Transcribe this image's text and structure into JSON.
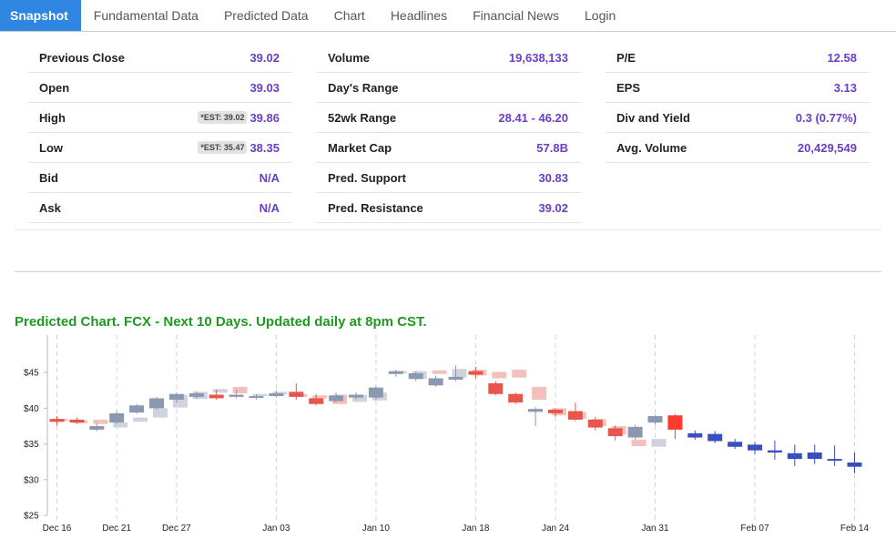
{
  "tabs": [
    {
      "label": "Snapshot",
      "active": true
    },
    {
      "label": "Fundamental Data",
      "active": false
    },
    {
      "label": "Predicted Data",
      "active": false
    },
    {
      "label": "Chart",
      "active": false
    },
    {
      "label": "Headlines",
      "active": false
    },
    {
      "label": "Financial News",
      "active": false
    },
    {
      "label": "Login",
      "active": false
    }
  ],
  "stats": {
    "col1": [
      {
        "label": "Previous Close",
        "value": "39.02",
        "est": ""
      },
      {
        "label": "Open",
        "value": "39.03",
        "est": ""
      },
      {
        "label": "High",
        "value": "39.86",
        "est": "*EST: 39.02"
      },
      {
        "label": "Low",
        "value": "38.35",
        "est": "*EST: 35.47"
      },
      {
        "label": "Bid",
        "value": "N/A",
        "est": ""
      },
      {
        "label": "Ask",
        "value": "N/A",
        "est": ""
      }
    ],
    "col2": [
      {
        "label": "Volume",
        "value": "19,638,133",
        "est": ""
      },
      {
        "label": "Day's Range",
        "value": "",
        "est": ""
      },
      {
        "label": "52wk Range",
        "value": "28.41 - 46.20",
        "est": ""
      },
      {
        "label": "Market Cap",
        "value": "57.8B",
        "est": ""
      },
      {
        "label": "Pred. Support",
        "value": "30.83",
        "est": ""
      },
      {
        "label": "Pred. Resistance",
        "value": "39.02",
        "est": ""
      }
    ],
    "col3": [
      {
        "label": "P/E",
        "value": "12.58",
        "est": ""
      },
      {
        "label": "EPS",
        "value": "3.13",
        "est": ""
      },
      {
        "label": "Div and Yield",
        "value": "0.3 (0.77%)",
        "est": ""
      },
      {
        "label": "Avg. Volume",
        "value": "20,429,549",
        "est": ""
      }
    ]
  },
  "chart_title": "Predicted Chart. FCX - Next 10 Days. Updated daily at 8pm CST.",
  "colors": {
    "tab_active_bg": "#2f86e0",
    "value_purple": "#6a3fc4",
    "title_green": "#1e9a1e",
    "hist_up": "#8a98b0",
    "hist_down": "#e8554b",
    "shadow_up": "#d0d3de",
    "shadow_down": "#f4c0bb",
    "pred_up": "#3b4ec0",
    "pred_down": "#ff3b30"
  },
  "chart_data": {
    "type": "candlestick",
    "title": "",
    "xlabel": "",
    "ylabel": "",
    "ylim": [
      25,
      50
    ],
    "yticks": [
      "$25",
      "$30",
      "$35",
      "$40",
      "$45"
    ],
    "xticks": [
      "Dec 16",
      "Dec 21",
      "Dec 27",
      "Jan 03",
      "Jan 10",
      "Jan 18",
      "Jan 24",
      "Jan 31",
      "Feb 07",
      "Feb 14"
    ],
    "candles": [
      {
        "x": 0.0,
        "open": 38.1,
        "close": 38.5,
        "high": 38.9,
        "low": 37.6,
        "style": "hist_down"
      },
      {
        "x": 1.0,
        "open": 38.0,
        "close": 38.4,
        "high": 38.7,
        "low": 37.8,
        "style": "hist_down"
      },
      {
        "x": 2.0,
        "open": 37.0,
        "close": 37.5,
        "high": 37.9,
        "low": 36.8,
        "style": "hist_up"
      },
      {
        "x": 3.0,
        "open": 38.0,
        "close": 39.3,
        "high": 39.6,
        "low": 37.8,
        "style": "hist_up"
      },
      {
        "x": 4.0,
        "open": 39.4,
        "close": 40.4,
        "high": 40.6,
        "low": 39.2,
        "style": "hist_up"
      },
      {
        "x": 5.0,
        "open": 40.0,
        "close": 41.4,
        "high": 41.6,
        "low": 39.8,
        "style": "hist_up"
      },
      {
        "x": 6.0,
        "open": 41.2,
        "close": 42.0,
        "high": 42.2,
        "low": 40.8,
        "style": "hist_up"
      },
      {
        "x": 7.0,
        "open": 41.6,
        "close": 42.1,
        "high": 42.4,
        "low": 41.3,
        "style": "hist_up"
      },
      {
        "x": 8.0,
        "open": 41.9,
        "close": 41.4,
        "high": 42.6,
        "low": 41.2,
        "style": "hist_down"
      },
      {
        "x": 9.0,
        "open": 41.6,
        "close": 41.9,
        "high": 42.6,
        "low": 41.4,
        "style": "hist_up"
      },
      {
        "x": 10.0,
        "open": 41.5,
        "close": 41.7,
        "high": 42.0,
        "low": 41.2,
        "style": "hist_up"
      },
      {
        "x": 11.0,
        "open": 41.7,
        "close": 42.1,
        "high": 42.5,
        "low": 41.5,
        "style": "hist_up"
      },
      {
        "x": 12.0,
        "open": 42.3,
        "close": 41.6,
        "high": 43.5,
        "low": 41.2,
        "style": "hist_down"
      },
      {
        "x": 13.0,
        "open": 41.4,
        "close": 40.6,
        "high": 42.0,
        "low": 40.4,
        "style": "hist_down"
      },
      {
        "x": 14.0,
        "open": 41.0,
        "close": 41.8,
        "high": 42.2,
        "low": 40.8,
        "style": "hist_up"
      },
      {
        "x": 15.0,
        "open": 41.5,
        "close": 41.9,
        "high": 42.2,
        "low": 41.2,
        "style": "hist_up"
      },
      {
        "x": 16.0,
        "open": 41.5,
        "close": 42.9,
        "high": 43.1,
        "low": 41.2,
        "style": "hist_up"
      },
      {
        "x": 17.0,
        "open": 44.8,
        "close": 45.2,
        "high": 45.4,
        "low": 44.4,
        "style": "hist_up"
      },
      {
        "x": 18.0,
        "open": 44.1,
        "close": 44.9,
        "high": 45.2,
        "low": 43.8,
        "style": "hist_up"
      },
      {
        "x": 19.0,
        "open": 43.2,
        "close": 44.2,
        "high": 44.6,
        "low": 43.0,
        "style": "hist_up"
      },
      {
        "x": 20.0,
        "open": 44.0,
        "close": 44.4,
        "high": 46.0,
        "low": 43.8,
        "style": "hist_up"
      },
      {
        "x": 21.0,
        "open": 45.2,
        "close": 44.7,
        "high": 45.8,
        "low": 44.2,
        "style": "hist_down"
      },
      {
        "x": 22.0,
        "open": 43.5,
        "close": 42.0,
        "high": 43.8,
        "low": 41.8,
        "style": "hist_down"
      },
      {
        "x": 23.0,
        "open": 42.0,
        "close": 40.8,
        "high": 42.2,
        "low": 40.6,
        "style": "hist_down"
      },
      {
        "x": 24.0,
        "open": 39.9,
        "close": 39.5,
        "high": 40.2,
        "low": 37.5,
        "style": "hist_up"
      },
      {
        "x": 25.0,
        "open": 39.8,
        "close": 39.3,
        "high": 40.0,
        "low": 38.8,
        "style": "hist_down"
      },
      {
        "x": 26.0,
        "open": 39.6,
        "close": 38.4,
        "high": 40.8,
        "low": 38.2,
        "style": "hist_down"
      },
      {
        "x": 27.0,
        "open": 38.4,
        "close": 37.3,
        "high": 38.8,
        "low": 36.9,
        "style": "hist_down"
      },
      {
        "x": 28.0,
        "open": 37.2,
        "close": 36.1,
        "high": 37.6,
        "low": 35.5,
        "style": "hist_down"
      },
      {
        "x": 29.0,
        "open": 35.9,
        "close": 37.4,
        "high": 37.7,
        "low": 35.6,
        "style": "hist_up"
      },
      {
        "x": 30.0,
        "open": 38.0,
        "close": 38.9,
        "high": 39.1,
        "low": 37.7,
        "style": "hist_up"
      },
      {
        "x": 31.0,
        "open": 39.0,
        "close": 37.0,
        "high": 39.2,
        "low": 35.7,
        "style": "pred_down"
      },
      {
        "x": 32.0,
        "open": 36.5,
        "close": 35.9,
        "high": 36.9,
        "low": 35.6,
        "style": "pred_up"
      },
      {
        "x": 33.0,
        "open": 36.4,
        "close": 35.4,
        "high": 36.8,
        "low": 35.1,
        "style": "pred_up"
      },
      {
        "x": 34.0,
        "open": 35.3,
        "close": 34.6,
        "high": 35.7,
        "low": 34.3,
        "style": "pred_up"
      },
      {
        "x": 35.0,
        "open": 34.9,
        "close": 34.1,
        "high": 35.3,
        "low": 33.5,
        "style": "pred_up"
      },
      {
        "x": 36.0,
        "open": 34.1,
        "close": 33.8,
        "high": 35.5,
        "low": 32.8,
        "style": "pred_up"
      },
      {
        "x": 37.0,
        "open": 33.7,
        "close": 32.9,
        "high": 34.9,
        "low": 31.9,
        "style": "pred_up"
      },
      {
        "x": 38.0,
        "open": 33.8,
        "close": 32.9,
        "high": 34.9,
        "low": 32.2,
        "style": "pred_up"
      },
      {
        "x": 39.0,
        "open": 32.9,
        "close": 32.8,
        "high": 34.8,
        "low": 31.9,
        "style": "pred_up"
      },
      {
        "x": 40.0,
        "open": 32.4,
        "close": 31.8,
        "high": 33.8,
        "low": 30.9,
        "style": "pred_up"
      }
    ],
    "shadows": [
      {
        "x": 0.0,
        "open": 38.5,
        "close": 38.2,
        "style": "shadow_down"
      },
      {
        "x": 1.0,
        "open": 38.3,
        "close": 37.9,
        "style": "shadow_down"
      },
      {
        "x": 2.0,
        "open": 37.8,
        "close": 38.4,
        "style": "shadow_down"
      },
      {
        "x": 3.0,
        "open": 37.3,
        "close": 38.0,
        "style": "shadow_up"
      },
      {
        "x": 4.0,
        "open": 38.1,
        "close": 38.7,
        "style": "shadow_up"
      },
      {
        "x": 5.0,
        "open": 38.7,
        "close": 40.0,
        "style": "shadow_up"
      },
      {
        "x": 6.0,
        "open": 40.1,
        "close": 41.9,
        "style": "shadow_up"
      },
      {
        "x": 7.0,
        "open": 41.3,
        "close": 42.3,
        "style": "shadow_up"
      },
      {
        "x": 8.0,
        "open": 42.7,
        "close": 42.2,
        "style": "shadow_up"
      },
      {
        "x": 9.0,
        "open": 43.0,
        "close": 42.1,
        "style": "shadow_down"
      },
      {
        "x": 10.0,
        "open": 42.0,
        "close": 41.7,
        "style": "shadow_up"
      },
      {
        "x": 11.0,
        "open": 42.3,
        "close": 41.9,
        "style": "shadow_up"
      },
      {
        "x": 12.0,
        "open": 42.0,
        "close": 41.6,
        "style": "shadow_down"
      },
      {
        "x": 13.0,
        "open": 41.8,
        "close": 41.4,
        "style": "shadow_down"
      },
      {
        "x": 14.0,
        "open": 41.9,
        "close": 40.6,
        "style": "shadow_down"
      },
      {
        "x": 15.0,
        "open": 41.9,
        "close": 40.9,
        "style": "shadow_up"
      },
      {
        "x": 16.0,
        "open": 42.2,
        "close": 41.1,
        "style": "shadow_up"
      },
      {
        "x": 17.0,
        "open": 45.2,
        "close": 44.9,
        "style": "shadow_up"
      },
      {
        "x": 18.0,
        "open": 45.2,
        "close": 44.1,
        "style": "shadow_up"
      },
      {
        "x": 19.0,
        "open": 45.3,
        "close": 44.8,
        "style": "shadow_down"
      },
      {
        "x": 20.0,
        "open": 45.5,
        "close": 44.3,
        "style": "shadow_up"
      },
      {
        "x": 21.0,
        "open": 45.4,
        "close": 44.6,
        "style": "shadow_down"
      },
      {
        "x": 22.0,
        "open": 45.1,
        "close": 44.2,
        "style": "shadow_down"
      },
      {
        "x": 23.0,
        "open": 45.4,
        "close": 44.3,
        "style": "shadow_down"
      },
      {
        "x": 24.0,
        "open": 43.0,
        "close": 41.2,
        "style": "shadow_down"
      },
      {
        "x": 25.0,
        "open": 40.0,
        "close": 39.0,
        "style": "shadow_down"
      },
      {
        "x": 26.0,
        "open": 39.5,
        "close": 38.5,
        "style": "shadow_down"
      },
      {
        "x": 27.0,
        "open": 38.5,
        "close": 37.5,
        "style": "shadow_down"
      },
      {
        "x": 28.0,
        "open": 37.5,
        "close": 36.3,
        "style": "shadow_down"
      },
      {
        "x": 29.0,
        "open": 35.6,
        "close": 34.7,
        "style": "shadow_down"
      },
      {
        "x": 30.0,
        "open": 35.7,
        "close": 34.6,
        "style": "shadow_up"
      }
    ]
  }
}
